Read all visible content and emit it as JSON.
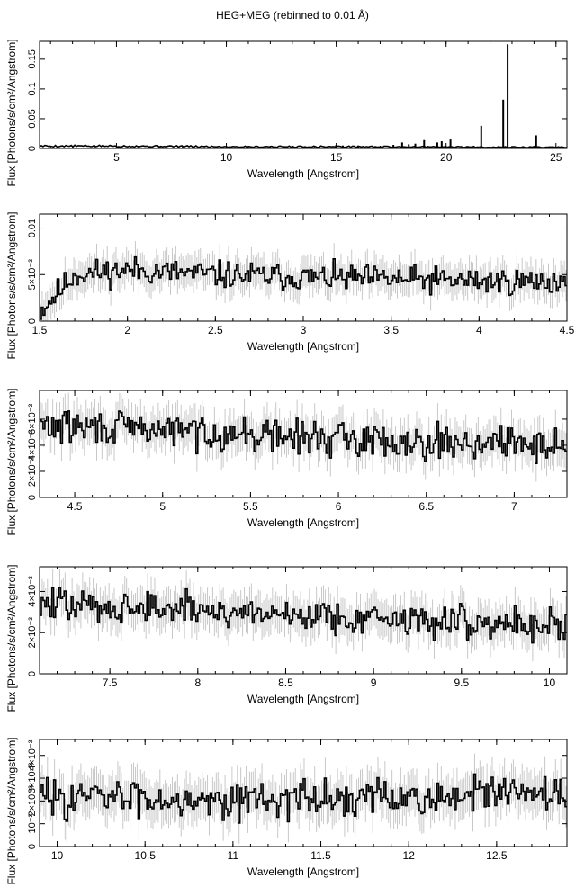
{
  "figure": {
    "title": "HEG+MEG (rebinned to 0.01 Å)"
  },
  "chart_data": [
    {
      "type": "line",
      "title": "",
      "xlabel": "Wavelength [Angstrom]",
      "ylabel": "Flux [Photons/s/cm²/Angstrom]",
      "xlim": [
        1.5,
        25.5
      ],
      "ylim": [
        0,
        0.18
      ],
      "xticks": [
        5,
        10,
        15,
        20,
        25
      ],
      "yticks": [
        0,
        0.05,
        0.1,
        0.15
      ],
      "yticklabels": [
        "0",
        "0.05",
        "0.1",
        "0.15"
      ],
      "continuum": [
        [
          1.5,
          0.004
        ],
        [
          5,
          0.004
        ],
        [
          10,
          0.003
        ],
        [
          15,
          0.003
        ],
        [
          20,
          0.0025
        ],
        [
          25.5,
          0.002
        ]
      ],
      "lines": [
        {
          "x": 15.0,
          "y": 0.006
        },
        {
          "x": 15.3,
          "y": 0.005
        },
        {
          "x": 16.0,
          "y": 0.005
        },
        {
          "x": 17.6,
          "y": 0.006
        },
        {
          "x": 18.0,
          "y": 0.01
        },
        {
          "x": 18.3,
          "y": 0.007
        },
        {
          "x": 18.6,
          "y": 0.008
        },
        {
          "x": 19.0,
          "y": 0.014
        },
        {
          "x": 19.6,
          "y": 0.01
        },
        {
          "x": 19.8,
          "y": 0.012
        },
        {
          "x": 20.2,
          "y": 0.015
        },
        {
          "x": 21.6,
          "y": 0.038
        },
        {
          "x": 22.6,
          "y": 0.082
        },
        {
          "x": 22.8,
          "y": 0.175
        },
        {
          "x": 24.1,
          "y": 0.022
        }
      ]
    },
    {
      "type": "line",
      "xlabel": "Wavelength [Angstrom]",
      "ylabel": "Flux [Photons/s/cm²/Angstrom]",
      "xlim": [
        1.5,
        4.5
      ],
      "ylim": [
        0,
        0.0115
      ],
      "xticks": [
        1.5,
        2,
        2.5,
        3,
        3.5,
        4,
        4.5
      ],
      "yticks": [
        0,
        0.005,
        0.01
      ],
      "yticklabels": [
        "0",
        "5×10⁻³",
        "0.01"
      ],
      "mean": [
        [
          1.5,
          0.001
        ],
        [
          1.6,
          0.003
        ],
        [
          1.7,
          0.005
        ],
        [
          2.0,
          0.0055
        ],
        [
          2.5,
          0.005
        ],
        [
          3.0,
          0.0047
        ],
        [
          3.5,
          0.0045
        ],
        [
          4.0,
          0.0043
        ],
        [
          4.5,
          0.0042
        ]
      ],
      "scatter": 0.0009,
      "error": 0.0017,
      "seed": 11
    },
    {
      "type": "line",
      "xlabel": "Wavelength [Angstrom]",
      "ylabel": "Flux [Photons/s/cm²/Angstrom]",
      "xlim": [
        4.3,
        7.3
      ],
      "ylim": [
        0,
        0.0082
      ],
      "xticks": [
        4.5,
        5,
        5.5,
        6,
        6.5,
        7
      ],
      "yticks": [
        0,
        0.002,
        0.004,
        0.006
      ],
      "yticklabels": [
        "0",
        "2×10⁻³",
        "4×10⁻³",
        "6×10⁻³"
      ],
      "mean": [
        [
          4.3,
          0.0055
        ],
        [
          5.0,
          0.0052
        ],
        [
          5.5,
          0.0048
        ],
        [
          6.0,
          0.0045
        ],
        [
          6.5,
          0.0043
        ],
        [
          7.3,
          0.004
        ]
      ],
      "scatter": 0.0008,
      "error": 0.0014,
      "seed": 29
    },
    {
      "type": "line",
      "xlabel": "Wavelength [Angstrom]",
      "ylabel": "Flux [Photons/s/cm²/Angstrom]",
      "xlim": [
        7.1,
        10.1
      ],
      "ylim": [
        0,
        0.0052
      ],
      "xticks": [
        7.5,
        8,
        8.5,
        9,
        9.5,
        10
      ],
      "yticks": [
        0,
        0.002,
        0.004
      ],
      "yticklabels": [
        "0",
        "2×10⁻³",
        "4×10⁻³"
      ],
      "mean": [
        [
          7.1,
          0.0034
        ],
        [
          8.0,
          0.0031
        ],
        [
          8.5,
          0.0029
        ],
        [
          9.0,
          0.0027
        ],
        [
          9.5,
          0.0025
        ],
        [
          10.1,
          0.0024
        ]
      ],
      "scatter": 0.0005,
      "error": 0.0009,
      "seed": 47
    },
    {
      "type": "line",
      "xlabel": "Wavelength [Angstrom]",
      "ylabel": "Flux [Photons/s/cm²/Angstrom]",
      "xlim": [
        9.9,
        12.9
      ],
      "ylim": [
        0,
        0.0047
      ],
      "xticks": [
        10,
        10.5,
        11,
        11.5,
        12,
        12.5
      ],
      "yticks": [
        0,
        0.001,
        0.002,
        0.003,
        0.004
      ],
      "yticklabels": [
        "0",
        "10⁻³",
        "2×10⁻³",
        "3×10⁻³",
        "4×10⁻³"
      ],
      "mean": [
        [
          9.9,
          0.0022
        ],
        [
          11.0,
          0.0021
        ],
        [
          12.0,
          0.0021
        ],
        [
          12.5,
          0.0023
        ],
        [
          12.9,
          0.0022
        ]
      ],
      "scatter": 0.0005,
      "error": 0.0009,
      "seed": 83
    }
  ]
}
